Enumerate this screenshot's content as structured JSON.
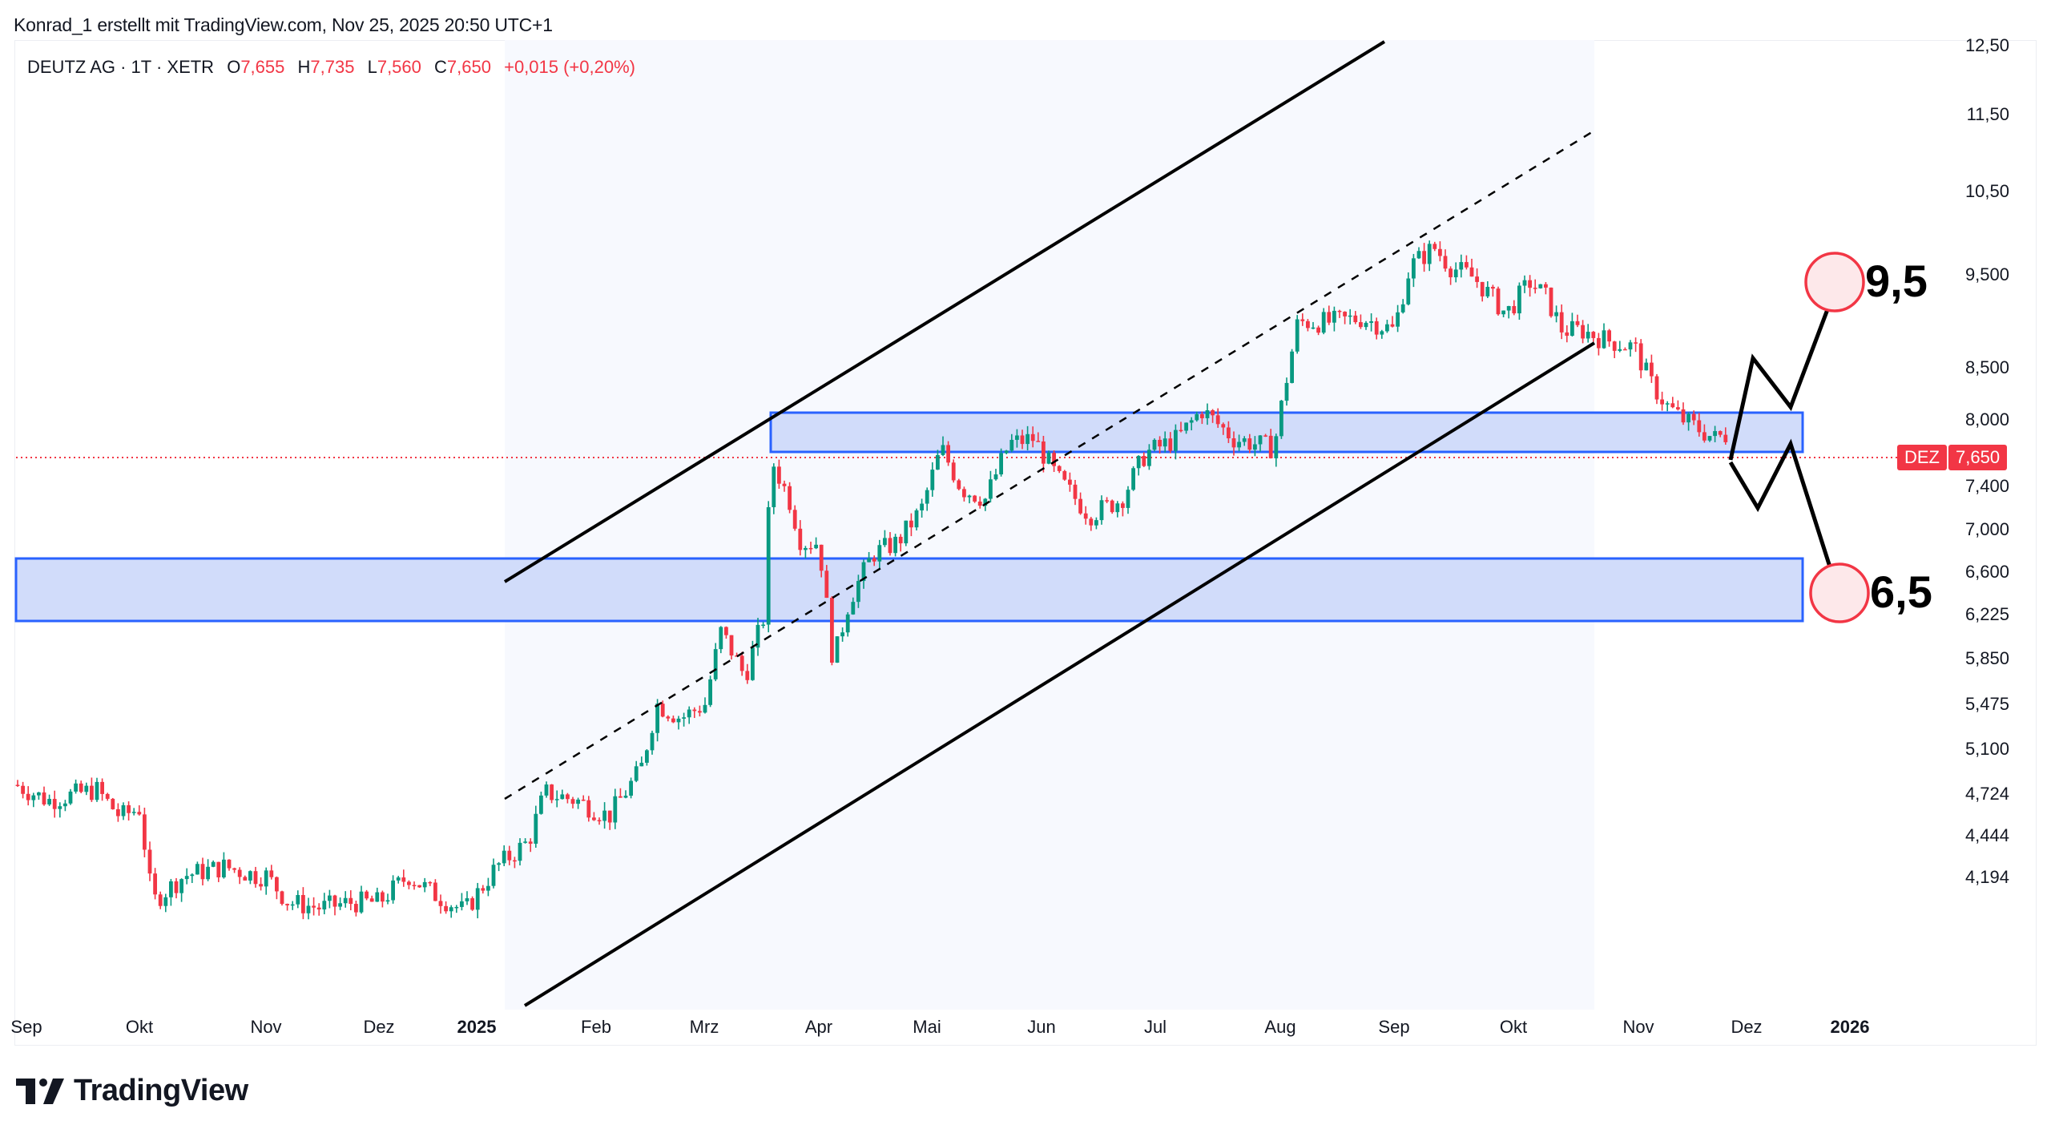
{
  "attribution": "Konrad_1 erstellt mit TradingView.com, Nov 25, 2025 20:50 UTC+1",
  "legend": {
    "symbol": "DEUTZ AG · 1T · XETR",
    "open_key": "O",
    "open": "7,655",
    "high_key": "H",
    "high": "7,735",
    "low_key": "L",
    "low": "7,560",
    "close_key": "C",
    "close": "7,650",
    "change": "+0,015 (+0,20%)"
  },
  "price_badge": {
    "label": "DEZ",
    "value": "7,650"
  },
  "logo": {
    "text": "TradingView"
  },
  "colors": {
    "up": "#089981",
    "down": "#f23645",
    "zone_fill": "#d1dcfa",
    "zone_border": "#2962ff",
    "channel_bg": "#f7f9fe",
    "target_circle_fill": "#fde8ea",
    "target_circle_stroke": "#f23645"
  },
  "chart_data": {
    "type": "candlestick",
    "title": "DEUTZ AG · 1T · XETR",
    "scale": "logarithmic",
    "current_price": 7.65,
    "y_ticks": [
      "12,50",
      "11,50",
      "10,50",
      "9,500",
      "8,500",
      "8,000",
      "7,400",
      "7,000",
      "6,600",
      "6,225",
      "5,850",
      "5,475",
      "5,100",
      "4,724",
      "4,444",
      "4,194"
    ],
    "x_ticks": [
      "Sep",
      "Okt",
      "Nov",
      "Dez",
      "2025",
      "Feb",
      "Mrz",
      "Apr",
      "Mai",
      "Jun",
      "Jul",
      "Aug",
      "Sep",
      "Okt",
      "Nov",
      "Dez",
      "2026"
    ],
    "x_ticks_bold": [
      "2025",
      "2026"
    ],
    "approx_path": [
      {
        "date": "2024-09",
        "close": 4.6
      },
      {
        "date": "2024-10",
        "close": 4.1
      },
      {
        "date": "2024-11",
        "close": 4.2
      },
      {
        "date": "2024-12",
        "close": 4.05
      },
      {
        "date": "2025-01",
        "close": 4.4
      },
      {
        "date": "2025-02",
        "close": 5.3
      },
      {
        "date": "2025-03",
        "close": 7.5
      },
      {
        "date": "2025-04",
        "close": 6.4
      },
      {
        "date": "2025-05",
        "close": 7.2
      },
      {
        "date": "2025-06",
        "close": 7.0
      },
      {
        "date": "2025-07",
        "close": 7.8
      },
      {
        "date": "2025-08",
        "close": 9.0
      },
      {
        "date": "2025-09",
        "close": 9.6
      },
      {
        "date": "2025-10",
        "close": 8.8
      },
      {
        "date": "2025-11",
        "close": 7.65
      }
    ],
    "annotations": {
      "zones": [
        {
          "name": "upper-resistance-zone",
          "from": 7.7,
          "to": 8.05
        },
        {
          "name": "lower-support-zone",
          "from": 6.3,
          "to": 6.75
        }
      ],
      "channel": {
        "type": "ascending parallel channel",
        "midline": "dashed"
      },
      "targets": [
        {
          "label": "9,5",
          "price": 9.5,
          "direction": "up"
        },
        {
          "label": "6,5",
          "price": 6.5,
          "direction": "down"
        }
      ]
    }
  },
  "targets": {
    "up_label": "9,5",
    "down_label": "6,5"
  }
}
